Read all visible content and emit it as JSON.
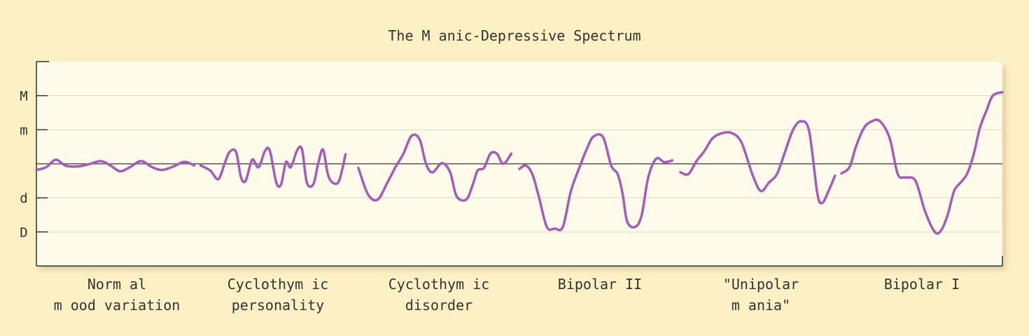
{
  "chart_data": {
    "type": "line",
    "title": "The M anic-Depressive Spectrum",
    "xlabel": "",
    "ylabel": "",
    "y_ticks": [
      "M",
      "m",
      "d",
      "D"
    ],
    "y_tick_values": [
      2,
      1,
      -1,
      -2
    ],
    "ylim": [
      -3,
      3
    ],
    "xlim": [
      0,
      6
    ],
    "baseline": 0,
    "grid": true,
    "colors": {
      "line": "#a55cb8",
      "baseline": "#333333",
      "grid": "#ddd6c8",
      "plot_bg": "#fffbea",
      "page_bg": "#fdf0c4"
    },
    "categories": [
      [
        "Norm al",
        "m ood variation"
      ],
      [
        "Cyclothym ic",
        "personality"
      ],
      [
        "Cyclothym ic",
        "disorder"
      ],
      [
        "Bipolar II"
      ],
      [
        "\"Unipolar",
        "m ania\""
      ],
      [
        "Bipolar I"
      ]
    ],
    "series": [
      {
        "x": [
          0.0,
          0.06,
          0.12,
          0.18,
          0.25,
          0.32,
          0.4,
          0.46,
          0.52,
          0.58,
          0.65,
          0.72,
          0.78,
          0.85,
          0.92,
          0.98
        ],
        "y": [
          -0.18,
          -0.1,
          0.12,
          -0.05,
          -0.08,
          -0.02,
          0.08,
          -0.05,
          -0.22,
          -0.1,
          0.08,
          -0.1,
          -0.18,
          -0.08,
          0.06,
          -0.05
        ]
      },
      {
        "x": [
          0.02,
          0.08,
          0.13,
          0.17,
          0.2,
          0.24,
          0.27,
          0.3,
          0.34,
          0.38,
          0.42,
          0.45,
          0.49,
          0.52,
          0.55,
          0.58,
          0.62,
          0.65,
          0.68,
          0.72,
          0.75,
          0.78,
          0.81,
          0.84,
          0.88,
          0.92
        ],
        "y": [
          -0.05,
          -0.2,
          -0.45,
          0.02,
          0.35,
          0.35,
          -0.38,
          -0.5,
          0.12,
          -0.1,
          0.38,
          0.38,
          -0.55,
          -0.6,
          0.05,
          -0.1,
          0.4,
          0.42,
          -0.55,
          -0.6,
          0.0,
          0.42,
          -0.3,
          -0.55,
          -0.5,
          0.28
        ]
      },
      {
        "x": [
          0.0,
          0.06,
          0.12,
          0.18,
          0.23,
          0.28,
          0.33,
          0.38,
          0.42,
          0.46,
          0.52,
          0.57,
          0.61,
          0.67,
          0.71,
          0.74,
          0.78,
          0.82,
          0.86,
          0.9,
          0.95
        ],
        "y": [
          -0.12,
          -0.9,
          -1.05,
          -0.55,
          -0.1,
          0.3,
          0.82,
          0.72,
          0.0,
          -0.25,
          0.02,
          -0.25,
          -0.95,
          -1.05,
          -0.62,
          -0.2,
          -0.12,
          0.3,
          0.3,
          0.0,
          0.3
        ]
      },
      {
        "x": [
          0.0,
          0.04,
          0.08,
          0.12,
          0.17,
          0.22,
          0.27,
          0.32,
          0.38,
          0.42,
          0.46,
          0.52,
          0.57,
          0.61,
          0.64,
          0.67,
          0.72,
          0.76,
          0.8,
          0.85,
          0.9,
          0.95
        ],
        "y": [
          -0.15,
          -0.05,
          -0.3,
          -0.95,
          -1.85,
          -1.9,
          -1.85,
          -0.8,
          -0.02,
          0.45,
          0.8,
          0.78,
          -0.05,
          -0.3,
          -0.85,
          -1.7,
          -1.85,
          -1.5,
          -0.4,
          0.15,
          0.05,
          0.1
        ]
      },
      {
        "x": [
          0.0,
          0.05,
          0.1,
          0.15,
          0.2,
          0.26,
          0.32,
          0.38,
          0.45,
          0.5,
          0.55,
          0.6,
          0.65,
          0.7,
          0.75,
          0.8,
          0.85,
          0.88,
          0.92,
          0.96
        ],
        "y": [
          -0.25,
          -0.3,
          0.08,
          0.38,
          0.75,
          0.9,
          0.9,
          0.62,
          -0.35,
          -0.8,
          -0.55,
          -0.3,
          0.35,
          1.0,
          1.25,
          0.95,
          -0.85,
          -1.15,
          -0.8,
          -0.35
        ]
      },
      {
        "x": [
          0.0,
          0.05,
          0.09,
          0.14,
          0.19,
          0.24,
          0.3,
          0.35,
          0.4,
          0.46,
          0.52,
          0.58,
          0.62,
          0.66,
          0.7,
          0.74,
          0.78,
          0.82,
          0.86,
          0.9,
          0.94,
          1.0
        ],
        "y": [
          -0.28,
          -0.1,
          0.5,
          1.05,
          1.25,
          1.25,
          0.75,
          -0.3,
          -0.4,
          -0.5,
          -1.4,
          -2.0,
          -1.95,
          -1.5,
          -0.8,
          -0.55,
          -0.3,
          0.25,
          1.05,
          1.55,
          2.0,
          2.1
        ]
      }
    ]
  }
}
